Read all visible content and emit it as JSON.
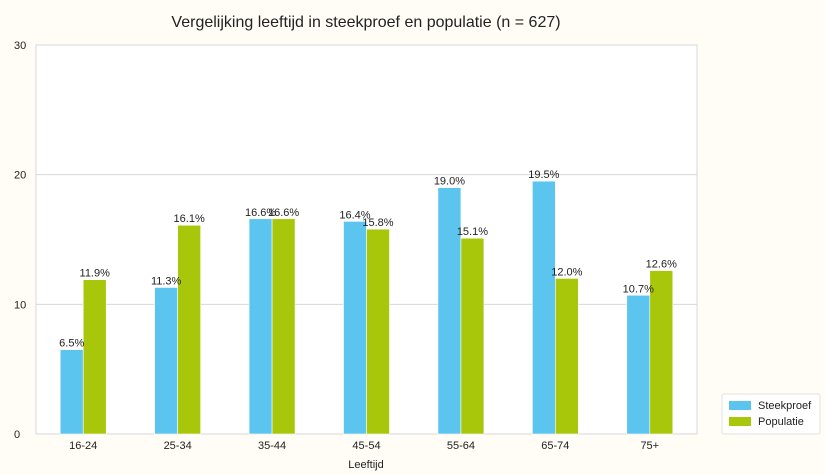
{
  "chart_data": {
    "type": "bar",
    "title": "Vergelijking leeftijd in steekproef en populatie (n = 627)",
    "xlabel": "Leeftijd",
    "ylabel": "",
    "categories": [
      "16-24",
      "25-34",
      "35-44",
      "45-54",
      "55-64",
      "65-74",
      "75+"
    ],
    "series": [
      {
        "name": "Steekproef",
        "color": "#5bc4ef",
        "values": [
          6.5,
          11.3,
          16.6,
          16.4,
          19.0,
          19.5,
          10.7
        ],
        "labels": [
          "6.5%",
          "11.3%",
          "16.6%",
          "16.4%",
          "19.0%",
          "19.5%",
          "10.7%"
        ]
      },
      {
        "name": "Populatie",
        "color": "#a9c70a",
        "values": [
          11.9,
          16.1,
          16.6,
          15.8,
          15.1,
          12.0,
          12.6
        ],
        "labels": [
          "11.9%",
          "16.1%",
          "16.6%",
          "15.8%",
          "15.1%",
          "12.0%",
          "12.6%"
        ]
      }
    ],
    "ylim": [
      0,
      30
    ],
    "yticks": [
      0,
      10,
      20,
      30
    ],
    "ytick_labels": [
      "0",
      "10",
      "20",
      "30"
    ],
    "grid": "horizontal",
    "legend": "bottom-right"
  }
}
